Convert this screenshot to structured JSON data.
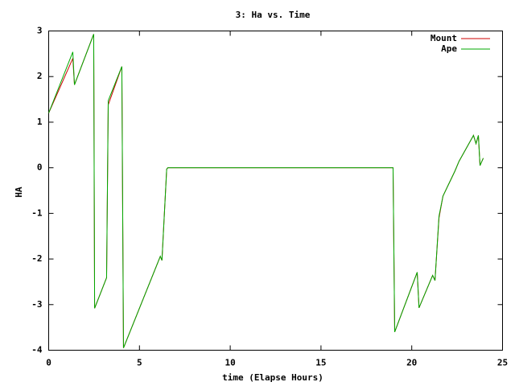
{
  "chart_data": {
    "type": "line",
    "title": "3: Ha vs. Time",
    "x_label": "time (Elapse Hours)",
    "y_label": "HA",
    "x": [
      0,
      1.33,
      1.42,
      2.48,
      2.53,
      3.19,
      3.28,
      4.03,
      4.12,
      6.03,
      6.15,
      6.24,
      6.5,
      6.56,
      18.97,
      19.06,
      20.3,
      20.4,
      21.15,
      21.28,
      21.5,
      21.72,
      22.38,
      22.6,
      23.4,
      23.54,
      23.67,
      23.76,
      23.94
    ],
    "series": [
      {
        "name": "Mount",
        "color": "#cc0000",
        "values": [
          1.2,
          2.4,
          1.82,
          2.93,
          -3.08,
          -2.41,
          1.38,
          2.22,
          -3.95,
          -2.06,
          -1.94,
          -2.03,
          -0.03,
          0,
          0,
          -3.6,
          -2.29,
          -3.07,
          -2.36,
          -2.47,
          -1.1,
          -0.62,
          -0.07,
          0.14,
          0.71,
          0.53,
          0.71,
          0.05,
          0.21
        ]
      },
      {
        "name": "Ape",
        "color": "#00aa00",
        "values": [
          1.2,
          2.54,
          1.82,
          2.93,
          -3.08,
          -2.41,
          1.47,
          2.22,
          -3.95,
          -2.06,
          -1.94,
          -2.03,
          -0.03,
          0,
          0,
          -3.6,
          -2.29,
          -3.07,
          -2.36,
          -2.47,
          -1.06,
          -0.62,
          -0.07,
          0.14,
          0.71,
          0.53,
          0.71,
          0.05,
          0.21
        ]
      }
    ],
    "xlim": [
      0,
      25
    ],
    "xticks": [
      0,
      5,
      10,
      15,
      20,
      25
    ],
    "ylim": [
      -4,
      3
    ],
    "yticks": [
      -4,
      -3,
      -2,
      -1,
      0,
      1,
      2,
      3
    ],
    "legend": "top-right"
  }
}
